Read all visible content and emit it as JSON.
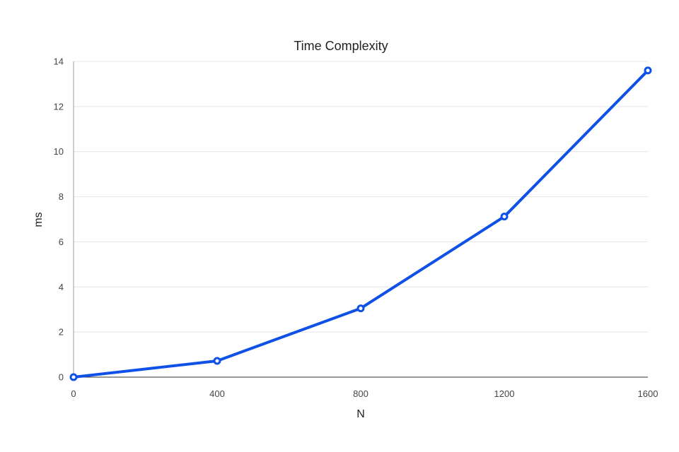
{
  "chart_data": {
    "type": "line",
    "title": "Time Complexity",
    "xlabel": "N",
    "ylabel": "ms",
    "x": [
      0,
      400,
      800,
      1200,
      1600
    ],
    "x_ticks": [
      "0",
      "400",
      "800",
      "1200",
      "1600"
    ],
    "y_ticks": [
      "0",
      "2",
      "4",
      "6",
      "8",
      "10",
      "12",
      "14"
    ],
    "xlim": [
      0,
      1600
    ],
    "ylim": [
      0,
      14
    ],
    "grid": true,
    "series": [
      {
        "values": [
          0,
          0.72,
          3.05,
          7.12,
          13.6
        ],
        "color": "#0f50e6"
      }
    ]
  }
}
